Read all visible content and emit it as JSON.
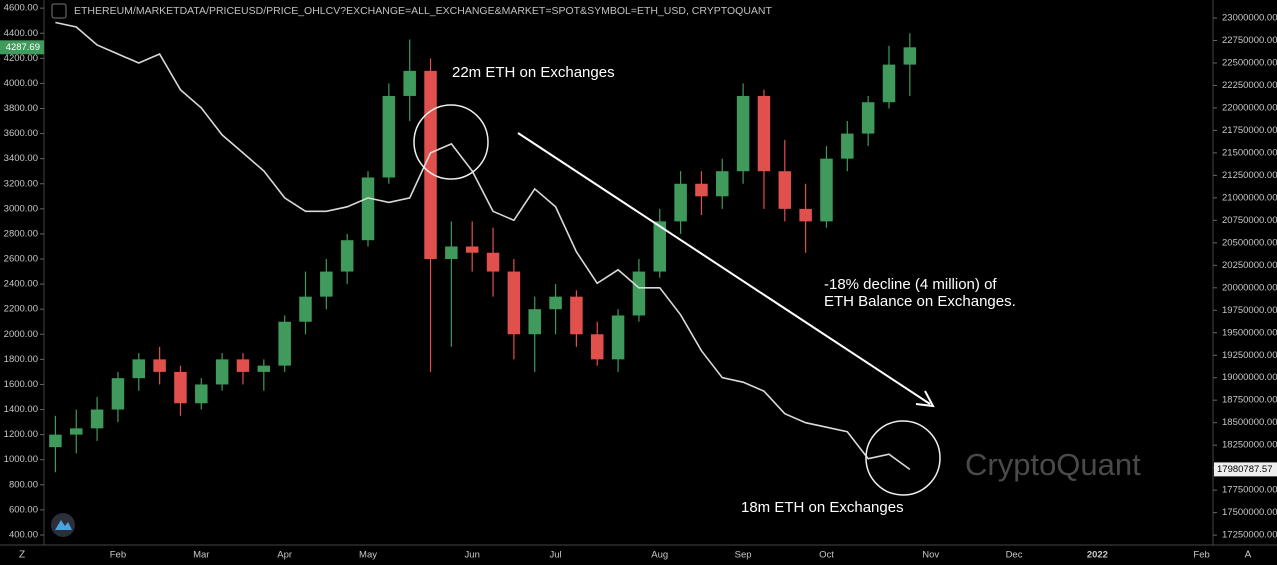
{
  "chart_data": {
    "type": "candlestick",
    "title": "ETHEREUM/MARKETDATA/PRICEUSD/PRICE_OHLCV?EXCHANGE=ALL_EXCHANGE&MARKET=SPOT&SYMBOL=ETH_USD, CRYPTOQUANT",
    "categories": [
      null,
      null,
      null,
      "Feb",
      null,
      null,
      null,
      "Mar",
      null,
      null,
      null,
      "Apr",
      null,
      null,
      null,
      "May",
      null,
      null,
      null,
      null,
      "Jun",
      null,
      null,
      null,
      "Jul",
      null,
      null,
      null,
      null,
      "Aug",
      null,
      null,
      null,
      "Sep",
      null,
      null,
      null,
      "Oct",
      null,
      null,
      null,
      null,
      "Nov",
      null,
      null,
      null,
      "Dec",
      null,
      null,
      null,
      "2022",
      null,
      null,
      null,
      null,
      "Feb"
    ],
    "series": [
      {
        "type": "candlestick",
        "color_up": "#3f9a5c",
        "color_down": "#e0504c",
        "open": [
          1100,
          1200,
          1250,
          1400,
          1650,
          1800,
          1700,
          1450,
          1600,
          1800,
          1700,
          1750,
          2100,
          2300,
          2500,
          2750,
          3250,
          3900,
          4100,
          2600,
          2700,
          2650,
          2500,
          2000,
          2200,
          2300,
          2000,
          1800,
          2150,
          2500,
          2900,
          3200,
          3100,
          3300,
          3900,
          3300,
          3000,
          2900,
          3400,
          3600,
          3850,
          4150,
          null,
          null,
          null,
          null,
          null,
          null,
          null,
          null,
          null,
          null,
          null,
          null,
          null,
          null
        ],
        "high": [
          1350,
          1400,
          1500,
          1700,
          1850,
          1900,
          1750,
          1650,
          1850,
          1850,
          1800,
          2150,
          2500,
          2600,
          2800,
          3300,
          4000,
          4350,
          4200,
          2900,
          2900,
          2850,
          2600,
          2300,
          2400,
          2350,
          2100,
          2200,
          2600,
          3000,
          3300,
          3300,
          3400,
          4000,
          3950,
          3550,
          3200,
          3500,
          3700,
          3900,
          4300,
          4400,
          null,
          null,
          null,
          null,
          null,
          null,
          null,
          null,
          null,
          null,
          null,
          null,
          null,
          null
        ],
        "low": [
          900,
          1050,
          1150,
          1300,
          1550,
          1600,
          1350,
          1400,
          1550,
          1600,
          1550,
          1700,
          2000,
          2200,
          2400,
          2700,
          3200,
          3700,
          1700,
          1900,
          2500,
          2300,
          1800,
          1700,
          2000,
          1900,
          1750,
          1700,
          2100,
          2450,
          2800,
          2950,
          3000,
          3200,
          3000,
          2900,
          2650,
          2850,
          3300,
          3500,
          3800,
          3900,
          null,
          null,
          null,
          null,
          null,
          null,
          null,
          null,
          null,
          null,
          null,
          null,
          null,
          null
        ],
        "close": [
          1200,
          1250,
          1400,
          1650,
          1800,
          1700,
          1450,
          1600,
          1800,
          1700,
          1750,
          2100,
          2300,
          2500,
          2750,
          3250,
          3900,
          4100,
          2600,
          2700,
          2650,
          2500,
          2000,
          2200,
          2300,
          2000,
          1800,
          2150,
          2500,
          2900,
          3200,
          3100,
          3300,
          3900,
          3300,
          3000,
          2900,
          3400,
          3600,
          3850,
          4150,
          4287.69,
          null,
          null,
          null,
          null,
          null,
          null,
          null,
          null,
          null,
          null,
          null,
          null,
          null,
          null
        ]
      },
      {
        "type": "line",
        "axis": "y2",
        "color": "#d9d9d9",
        "values": [
          22950000,
          22900000,
          22700000,
          22600000,
          22500000,
          22600000,
          22200000,
          22000000,
          21700000,
          21500000,
          21300000,
          21000000,
          20850000,
          20850000,
          20900000,
          21000000,
          20950000,
          21000000,
          21500000,
          21600000,
          21300000,
          20850000,
          20750000,
          21100000,
          20900000,
          20400000,
          20050000,
          20200000,
          20000000,
          20000000,
          19700000,
          19300000,
          19000000,
          18950000,
          18850000,
          18600000,
          18500000,
          18450000,
          18400000,
          18100000,
          18150000,
          17980787.57,
          null,
          null,
          null,
          null,
          null,
          null,
          null,
          null,
          null,
          null,
          null,
          null,
          null,
          null
        ]
      }
    ],
    "ylim": [
      320,
      4665
    ],
    "yticks": [
      {
        "value": 400,
        "label": "400.00"
      },
      {
        "value": 600,
        "label": "600.00"
      },
      {
        "value": 800,
        "label": "800.00"
      },
      {
        "value": 1000,
        "label": "1000.00"
      },
      {
        "value": 1200,
        "label": "1200.00"
      },
      {
        "value": 1400,
        "label": "1400.00"
      },
      {
        "value": 1600,
        "label": "1600.00"
      },
      {
        "value": 1800,
        "label": "1800.00"
      },
      {
        "value": 2000,
        "label": "2000.00"
      },
      {
        "value": 2200,
        "label": "2200.00"
      },
      {
        "value": 2400,
        "label": "2400.00"
      },
      {
        "value": 2600,
        "label": "2600.00"
      },
      {
        "value": 2800,
        "label": "2800.00"
      },
      {
        "value": 3000,
        "label": "3000.00"
      },
      {
        "value": 3200,
        "label": "3200.00"
      },
      {
        "value": 3400,
        "label": "3400.00"
      },
      {
        "value": 3600,
        "label": "3600.00"
      },
      {
        "value": 3800,
        "label": "3800.00"
      },
      {
        "value": 4000,
        "label": "4000.00"
      },
      {
        "value": 4200,
        "label": "4200.00"
      },
      {
        "value": 4400,
        "label": "4400.00"
      },
      {
        "value": 4600,
        "label": "4600.00"
      }
    ],
    "y2lim": [
      17140000,
      23200000
    ],
    "y2ticks": [
      {
        "value": 17250000,
        "label": "17250000.00"
      },
      {
        "value": 17500000,
        "label": "17500000.00"
      },
      {
        "value": 17750000,
        "label": "17750000.00"
      },
      {
        "value": 18000000,
        "label": "18000000.00"
      },
      {
        "value": 18250000,
        "label": "18250000.00"
      },
      {
        "value": 18500000,
        "label": "18500000.00"
      },
      {
        "value": 18750000,
        "label": "18750000.00"
      },
      {
        "value": 19000000,
        "label": "19000000.00"
      },
      {
        "value": 19250000,
        "label": "19250000.00"
      },
      {
        "value": 19500000,
        "label": "19500000.00"
      },
      {
        "value": 19750000,
        "label": "19750000.00"
      },
      {
        "value": 20000000,
        "label": "20000000.00"
      },
      {
        "value": 20250000,
        "label": "20250000.00"
      },
      {
        "value": 20500000,
        "label": "20500000.00"
      },
      {
        "value": 20750000,
        "label": "20750000.00"
      },
      {
        "value": 21000000,
        "label": "21000000.00"
      },
      {
        "value": 21250000,
        "label": "21250000.00"
      },
      {
        "value": 21500000,
        "label": "21500000.00"
      },
      {
        "value": 21750000,
        "label": "21750000.00"
      },
      {
        "value": 22000000,
        "label": "22000000.00"
      },
      {
        "value": 22250000,
        "label": "22250000.00"
      },
      {
        "value": 22500000,
        "label": "22500000.00"
      },
      {
        "value": 22750000,
        "label": "22750000.00"
      },
      {
        "value": 23000000,
        "label": "23000000.00"
      }
    ],
    "grid": false,
    "annotations": [
      "22m ETH on Exchanges",
      "-18% decline (4 million) of",
      "ETH Balance on Exchanges.",
      "18m ETH on Exchanges"
    ],
    "watermark": "CryptoQuant",
    "buttons": [
      "Z",
      "A"
    ]
  }
}
